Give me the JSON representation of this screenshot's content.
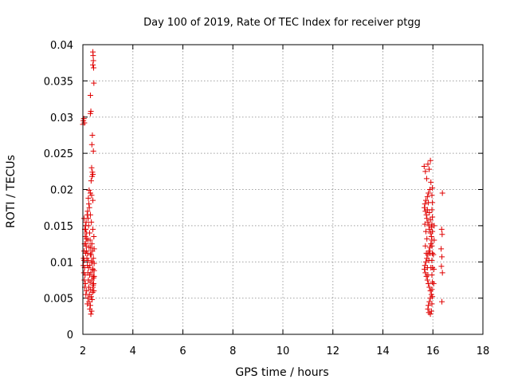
{
  "chart_data": {
    "type": "scatter",
    "title": "Day 100 of 2019, Rate Of TEC Index for receiver ptgg",
    "xlabel": "GPS time / hours",
    "ylabel": "ROTI / TECUs",
    "xlim": [
      2,
      18
    ],
    "ylim": [
      0,
      0.04
    ],
    "x_ticks": [
      "2",
      "4",
      "6",
      "8",
      "10",
      "12",
      "14",
      "16",
      "18"
    ],
    "y_ticks": [
      "0",
      "0.005",
      "0.01",
      "0.015",
      "0.02",
      "0.025",
      "0.03",
      "0.035",
      "0.04"
    ],
    "grid": true,
    "marker": "+",
    "color": "#e00000",
    "series": [
      {
        "name": "ROTI",
        "points": [
          [
            2.0,
            0.029
          ],
          [
            2.02,
            0.0295
          ],
          [
            2.04,
            0.0298
          ],
          [
            2.06,
            0.0292
          ],
          [
            2.3,
            0.033
          ],
          [
            2.3,
            0.0305
          ],
          [
            2.32,
            0.0308
          ],
          [
            2.4,
            0.039
          ],
          [
            2.41,
            0.0385
          ],
          [
            2.42,
            0.0378
          ],
          [
            2.4,
            0.0372
          ],
          [
            2.43,
            0.0368
          ],
          [
            2.44,
            0.0347
          ],
          [
            2.38,
            0.0275
          ],
          [
            2.36,
            0.0262
          ],
          [
            2.42,
            0.0253
          ],
          [
            2.35,
            0.023
          ],
          [
            2.38,
            0.0224
          ],
          [
            2.4,
            0.0221
          ],
          [
            2.37,
            0.0218
          ],
          [
            2.33,
            0.0212
          ],
          [
            2.25,
            0.0199
          ],
          [
            2.3,
            0.0195
          ],
          [
            2.35,
            0.0192
          ],
          [
            2.22,
            0.0188
          ],
          [
            2.4,
            0.0185
          ],
          [
            2.05,
            0.016
          ],
          [
            2.1,
            0.015
          ],
          [
            2.15,
            0.014
          ],
          [
            2.2,
            0.013
          ],
          [
            2.25,
            0.012
          ],
          [
            2.3,
            0.011
          ],
          [
            2.35,
            0.01
          ],
          [
            2.4,
            0.009
          ],
          [
            2.45,
            0.008
          ],
          [
            2.1,
            0.007
          ],
          [
            2.15,
            0.006
          ],
          [
            2.2,
            0.005
          ],
          [
            2.25,
            0.0045
          ],
          [
            2.3,
            0.004
          ],
          [
            2.35,
            0.0032
          ],
          [
            2.32,
            0.0028
          ],
          [
            2.28,
            0.0035
          ],
          [
            2.18,
            0.0042
          ],
          [
            2.12,
            0.0055
          ],
          [
            2.08,
            0.0065
          ],
          [
            2.06,
            0.0075
          ],
          [
            2.04,
            0.0085
          ],
          [
            2.02,
            0.0095
          ],
          [
            2.03,
            0.0105
          ],
          [
            2.05,
            0.0115
          ],
          [
            2.07,
            0.0125
          ],
          [
            2.09,
            0.0135
          ],
          [
            2.11,
            0.0145
          ],
          [
            2.13,
            0.0155
          ],
          [
            2.17,
            0.0165
          ],
          [
            2.19,
            0.017
          ],
          [
            2.21,
            0.016
          ],
          [
            2.23,
            0.015
          ],
          [
            2.27,
            0.014
          ],
          [
            2.29,
            0.013
          ],
          [
            2.31,
            0.012
          ],
          [
            2.33,
            0.011
          ],
          [
            2.37,
            0.01
          ],
          [
            2.39,
            0.009
          ],
          [
            2.41,
            0.008
          ],
          [
            2.43,
            0.007
          ],
          [
            2.44,
            0.006
          ],
          [
            2.26,
            0.0055
          ],
          [
            2.24,
            0.0065
          ],
          [
            2.22,
            0.0075
          ],
          [
            2.2,
            0.0085
          ],
          [
            2.18,
            0.0095
          ],
          [
            2.16,
            0.0105
          ],
          [
            2.14,
            0.0115
          ],
          [
            2.12,
            0.0125
          ],
          [
            2.1,
            0.0135
          ],
          [
            2.08,
            0.0145
          ],
          [
            2.36,
            0.0125
          ],
          [
            2.38,
            0.0115
          ],
          [
            2.42,
            0.0105
          ],
          [
            2.44,
            0.0135
          ],
          [
            2.4,
            0.0145
          ],
          [
            2.34,
            0.0155
          ],
          [
            2.3,
            0.0165
          ],
          [
            2.26,
            0.0175
          ],
          [
            2.24,
            0.018
          ],
          [
            2.28,
            0.0095
          ],
          [
            2.32,
            0.0085
          ],
          [
            2.36,
            0.0075
          ],
          [
            2.4,
            0.0065
          ],
          [
            2.05,
            0.0102
          ],
          [
            2.07,
            0.0092
          ],
          [
            2.09,
            0.0082
          ],
          [
            2.11,
            0.0112
          ],
          [
            2.13,
            0.0122
          ],
          [
            2.15,
            0.0132
          ],
          [
            2.19,
            0.0112
          ],
          [
            2.21,
            0.0102
          ],
          [
            2.23,
            0.0092
          ],
          [
            2.27,
            0.0082
          ],
          [
            2.29,
            0.0072
          ],
          [
            2.31,
            0.0062
          ],
          [
            2.33,
            0.0052
          ],
          [
            2.37,
            0.0048
          ],
          [
            2.39,
            0.0058
          ],
          [
            2.41,
            0.0068
          ],
          [
            2.43,
            0.0078
          ],
          [
            2.45,
            0.0088
          ],
          [
            2.45,
            0.0098
          ],
          [
            2.45,
            0.0118
          ],
          [
            15.65,
            0.0232
          ],
          [
            15.7,
            0.0225
          ],
          [
            15.75,
            0.0215
          ],
          [
            15.8,
            0.0235
          ],
          [
            15.85,
            0.0228
          ],
          [
            15.9,
            0.024
          ],
          [
            15.92,
            0.021
          ],
          [
            15.88,
            0.02
          ],
          [
            15.82,
            0.0195
          ],
          [
            15.78,
            0.019
          ],
          [
            15.72,
            0.0185
          ],
          [
            15.68,
            0.018
          ],
          [
            15.66,
            0.0175
          ],
          [
            15.7,
            0.017
          ],
          [
            15.74,
            0.0165
          ],
          [
            15.76,
            0.016
          ],
          [
            15.8,
            0.0155
          ],
          [
            15.84,
            0.015
          ],
          [
            15.86,
            0.0145
          ],
          [
            15.9,
            0.014
          ],
          [
            15.94,
            0.0135
          ],
          [
            15.96,
            0.013
          ],
          [
            15.92,
            0.0125
          ],
          [
            15.88,
            0.012
          ],
          [
            15.84,
            0.0115
          ],
          [
            15.8,
            0.011
          ],
          [
            15.76,
            0.0105
          ],
          [
            15.72,
            0.01
          ],
          [
            15.68,
            0.0095
          ],
          [
            15.66,
            0.009
          ],
          [
            15.7,
            0.0085
          ],
          [
            15.74,
            0.008
          ],
          [
            15.78,
            0.0075
          ],
          [
            15.82,
            0.007
          ],
          [
            15.86,
            0.0065
          ],
          [
            15.9,
            0.006
          ],
          [
            15.94,
            0.0055
          ],
          [
            15.9,
            0.005
          ],
          [
            15.86,
            0.0045
          ],
          [
            15.82,
            0.004
          ],
          [
            15.8,
            0.0035
          ],
          [
            15.84,
            0.003
          ],
          [
            15.9,
            0.0028
          ],
          [
            15.94,
            0.0032
          ],
          [
            15.96,
            0.0042
          ],
          [
            15.98,
            0.0052
          ],
          [
            15.96,
            0.0062
          ],
          [
            15.98,
            0.0072
          ],
          [
            15.96,
            0.0082
          ],
          [
            15.98,
            0.0092
          ],
          [
            15.96,
            0.0102
          ],
          [
            15.98,
            0.0112
          ],
          [
            15.96,
            0.0122
          ],
          [
            15.98,
            0.0142
          ],
          [
            15.96,
            0.0152
          ],
          [
            15.98,
            0.0162
          ],
          [
            15.96,
            0.0172
          ],
          [
            15.98,
            0.0182
          ],
          [
            15.96,
            0.0192
          ],
          [
            15.98,
            0.0202
          ],
          [
            15.76,
            0.0132
          ],
          [
            15.72,
            0.0142
          ],
          [
            15.68,
            0.0152
          ],
          [
            15.7,
            0.0122
          ],
          [
            15.74,
            0.0112
          ],
          [
            15.78,
            0.0092
          ],
          [
            15.8,
            0.0082
          ],
          [
            15.84,
            0.0102
          ],
          [
            15.88,
            0.0112
          ],
          [
            15.92,
            0.0092
          ],
          [
            15.78,
            0.0172
          ],
          [
            15.82,
            0.0182
          ],
          [
            15.86,
            0.0168
          ],
          [
            15.9,
            0.0158
          ],
          [
            15.94,
            0.0148
          ],
          [
            16.05,
            0.015
          ],
          [
            16.05,
            0.013
          ],
          [
            16.02,
            0.011
          ],
          [
            16.04,
            0.009
          ],
          [
            16.03,
            0.007
          ],
          [
            16.38,
            0.0195
          ],
          [
            16.35,
            0.0145
          ],
          [
            16.37,
            0.0138
          ],
          [
            16.33,
            0.0118
          ],
          [
            16.36,
            0.0107
          ],
          [
            16.34,
            0.0094
          ],
          [
            16.38,
            0.0085
          ],
          [
            16.36,
            0.0045
          ]
        ]
      }
    ]
  }
}
